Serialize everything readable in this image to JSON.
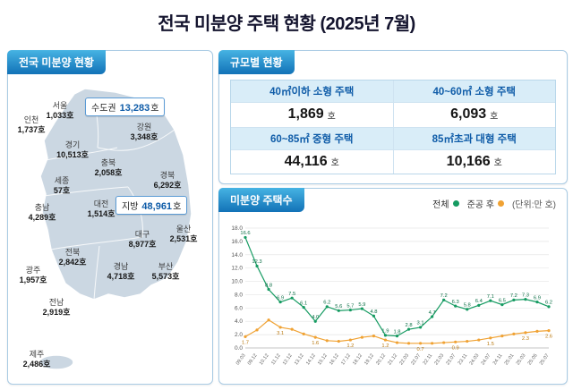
{
  "title": "전국 미분양 주택 현황 (2025년 7월)",
  "panels": {
    "map": {
      "header": "전국 미분양 현황",
      "summary": [
        {
          "label": "수도권",
          "value": "13,283",
          "suffix": "호"
        },
        {
          "label": "지방",
          "value": "48,961",
          "suffix": "호"
        }
      ],
      "regions": [
        {
          "name": "서울",
          "value": "1,033호"
        },
        {
          "name": "인천",
          "value": "1,737호"
        },
        {
          "name": "경기",
          "value": "10,513호"
        },
        {
          "name": "강원",
          "value": "3,348호"
        },
        {
          "name": "충북",
          "value": "2,058호"
        },
        {
          "name": "경북",
          "value": "6,292호"
        },
        {
          "name": "세종",
          "value": "57호"
        },
        {
          "name": "대전",
          "value": "1,514호"
        },
        {
          "name": "충남",
          "value": "4,289호"
        },
        {
          "name": "대구",
          "value": "8,977호"
        },
        {
          "name": "울산",
          "value": "2,531호"
        },
        {
          "name": "전북",
          "value": "2,842호"
        },
        {
          "name": "경남",
          "value": "4,718호"
        },
        {
          "name": "부산",
          "value": "5,573호"
        },
        {
          "name": "광주",
          "value": "1,957호"
        },
        {
          "name": "전남",
          "value": "2,919호"
        },
        {
          "name": "제주",
          "value": "2,486호"
        }
      ]
    },
    "scale": {
      "header": "규모별 현황",
      "unit": "호",
      "cells": [
        {
          "label": "40㎡이하 소형 주택",
          "value": "1,869"
        },
        {
          "label": "40~60㎡ 소형 주택",
          "value": "6,093"
        },
        {
          "label": "60~85㎡ 중형 주택",
          "value": "44,116"
        },
        {
          "label": "85㎡초과 대형 주택",
          "value": "10,166"
        }
      ]
    },
    "chart": {
      "header": "미분양 주택수"
    }
  },
  "chart_data": {
    "type": "line",
    "title": "미분양 주택수",
    "unit_label": "(단위:만 호)",
    "ylim": [
      0,
      18
    ],
    "ytick_step": 2,
    "grid": true,
    "legend_position": "top-right",
    "x": [
      "09.03",
      "09.12",
      "10.12",
      "11.12",
      "12.12",
      "13.12",
      "14.12",
      "15.12",
      "16.12",
      "17.12",
      "18.12",
      "19.12",
      "20.12",
      "21.12",
      "22.03",
      "22.07",
      "22.11",
      "23.03",
      "23.07",
      "23.11",
      "24.03",
      "24.07",
      "24.11",
      "25.01",
      "25.03",
      "25.05",
      "25.07"
    ],
    "series": [
      {
        "name": "전체",
        "color": "#169b62",
        "values": [
          16.6,
          12.3,
          8.8,
          6.9,
          7.5,
          6.1,
          4.0,
          6.2,
          5.6,
          5.7,
          5.9,
          4.8,
          1.9,
          1.8,
          2.8,
          3.1,
          4.7,
          7.2,
          6.3,
          5.8,
          6.4,
          7.1,
          6.5,
          7.2,
          7.3,
          6.9,
          6.2
        ]
      },
      {
        "name": "준공 후",
        "color": "#f0a233",
        "values": [
          1.7,
          2.7,
          4.2,
          3.1,
          2.8,
          2.1,
          1.6,
          1.1,
          1.0,
          1.2,
          1.6,
          1.8,
          1.2,
          0.8,
          0.7,
          0.7,
          0.7,
          0.8,
          0.9,
          1.0,
          1.2,
          1.5,
          1.8,
          2.1,
          2.3,
          2.5,
          2.6
        ]
      }
    ]
  }
}
